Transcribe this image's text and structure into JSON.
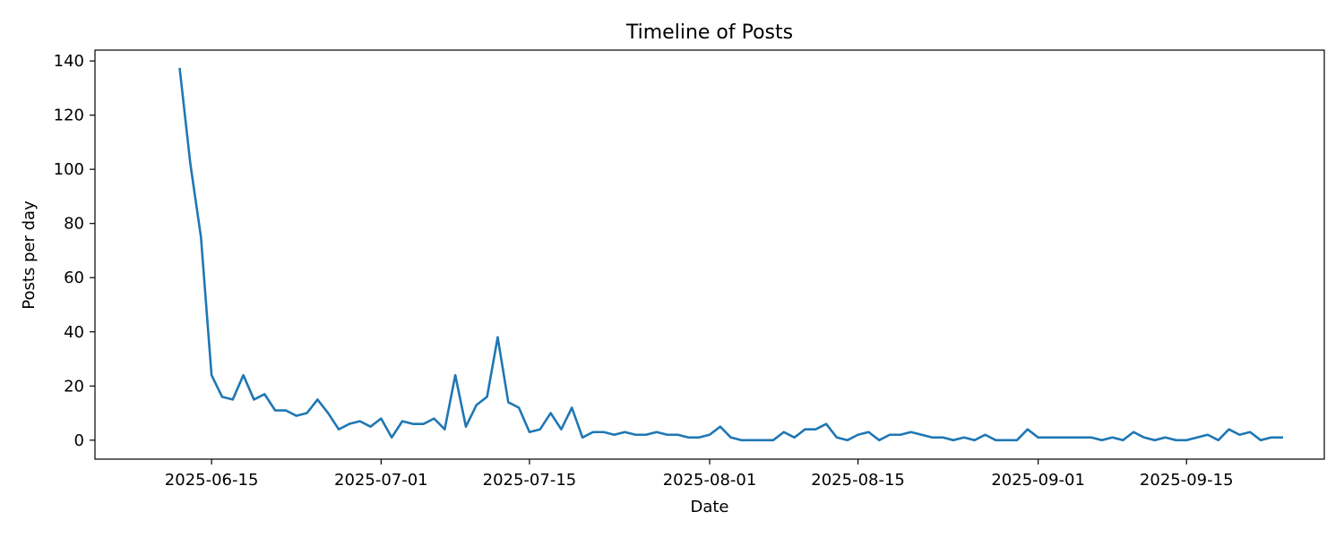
{
  "chart_data": {
    "type": "line",
    "title": "Timeline of Posts",
    "xlabel": "Date",
    "ylabel": "Posts per day",
    "x_ticks": [
      "2025-06-15",
      "2025-07-01",
      "2025-07-15",
      "2025-08-01",
      "2025-08-15",
      "2025-09-01",
      "2025-09-15"
    ],
    "y_ticks": [
      0,
      20,
      40,
      60,
      80,
      100,
      120,
      140
    ],
    "xlim": [
      "2025-06-04",
      "2025-09-28"
    ],
    "ylim": [
      -7,
      144
    ],
    "grid": false,
    "line_color": "#1f77b4",
    "series": [
      {
        "x": [
          "2025-06-12",
          "2025-06-13",
          "2025-06-14",
          "2025-06-15",
          "2025-06-16",
          "2025-06-17",
          "2025-06-18",
          "2025-06-19",
          "2025-06-20",
          "2025-06-21",
          "2025-06-22",
          "2025-06-23",
          "2025-06-24",
          "2025-06-25",
          "2025-06-26",
          "2025-06-27",
          "2025-06-28",
          "2025-06-29",
          "2025-06-30",
          "2025-07-01",
          "2025-07-02",
          "2025-07-03",
          "2025-07-04",
          "2025-07-05",
          "2025-07-06",
          "2025-07-07",
          "2025-07-08",
          "2025-07-09",
          "2025-07-10",
          "2025-07-11",
          "2025-07-12",
          "2025-07-13",
          "2025-07-14",
          "2025-07-15",
          "2025-07-16",
          "2025-07-17",
          "2025-07-18",
          "2025-07-19",
          "2025-07-20",
          "2025-07-21",
          "2025-07-22",
          "2025-07-23",
          "2025-07-24",
          "2025-07-25",
          "2025-07-26",
          "2025-07-27",
          "2025-07-28",
          "2025-07-29",
          "2025-07-30",
          "2025-07-31",
          "2025-08-01",
          "2025-08-02",
          "2025-08-03",
          "2025-08-04",
          "2025-08-05",
          "2025-08-06",
          "2025-08-07",
          "2025-08-08",
          "2025-08-09",
          "2025-08-10",
          "2025-08-11",
          "2025-08-12",
          "2025-08-13",
          "2025-08-14",
          "2025-08-15",
          "2025-08-16",
          "2025-08-17",
          "2025-08-18",
          "2025-08-19",
          "2025-08-20",
          "2025-08-21",
          "2025-08-22",
          "2025-08-23",
          "2025-08-24",
          "2025-08-25",
          "2025-08-26",
          "2025-08-27",
          "2025-08-28",
          "2025-08-29",
          "2025-08-30",
          "2025-08-31",
          "2025-09-01",
          "2025-09-02",
          "2025-09-03",
          "2025-09-04",
          "2025-09-05",
          "2025-09-06",
          "2025-09-07",
          "2025-09-08",
          "2025-09-09",
          "2025-09-10",
          "2025-09-11",
          "2025-09-12",
          "2025-09-13",
          "2025-09-14",
          "2025-09-15",
          "2025-09-16",
          "2025-09-17",
          "2025-09-18",
          "2025-09-19",
          "2025-09-20",
          "2025-09-21",
          "2025-09-22",
          "2025-09-23",
          "2025-09-24"
        ],
        "y": [
          137,
          102,
          75,
          24,
          16,
          15,
          24,
          15,
          17,
          11,
          11,
          9,
          10,
          15,
          10,
          4,
          6,
          7,
          5,
          8,
          1,
          7,
          6,
          6,
          8,
          4,
          24,
          5,
          13,
          16,
          38,
          14,
          12,
          3,
          4,
          10,
          4,
          12,
          1,
          3,
          3,
          2,
          3,
          2,
          2,
          3,
          2,
          2,
          1,
          1,
          2,
          5,
          1,
          0,
          0,
          0,
          0,
          3,
          1,
          4,
          4,
          6,
          1,
          0,
          2,
          3,
          0,
          2,
          2,
          3,
          2,
          1,
          1,
          0,
          1,
          0,
          2,
          0,
          0,
          0,
          4,
          1,
          1,
          1,
          1,
          1,
          1,
          0,
          1,
          0,
          3,
          1,
          0,
          1,
          0,
          0,
          1,
          2,
          0,
          4,
          2,
          3,
          0,
          1,
          1
        ]
      }
    ]
  }
}
